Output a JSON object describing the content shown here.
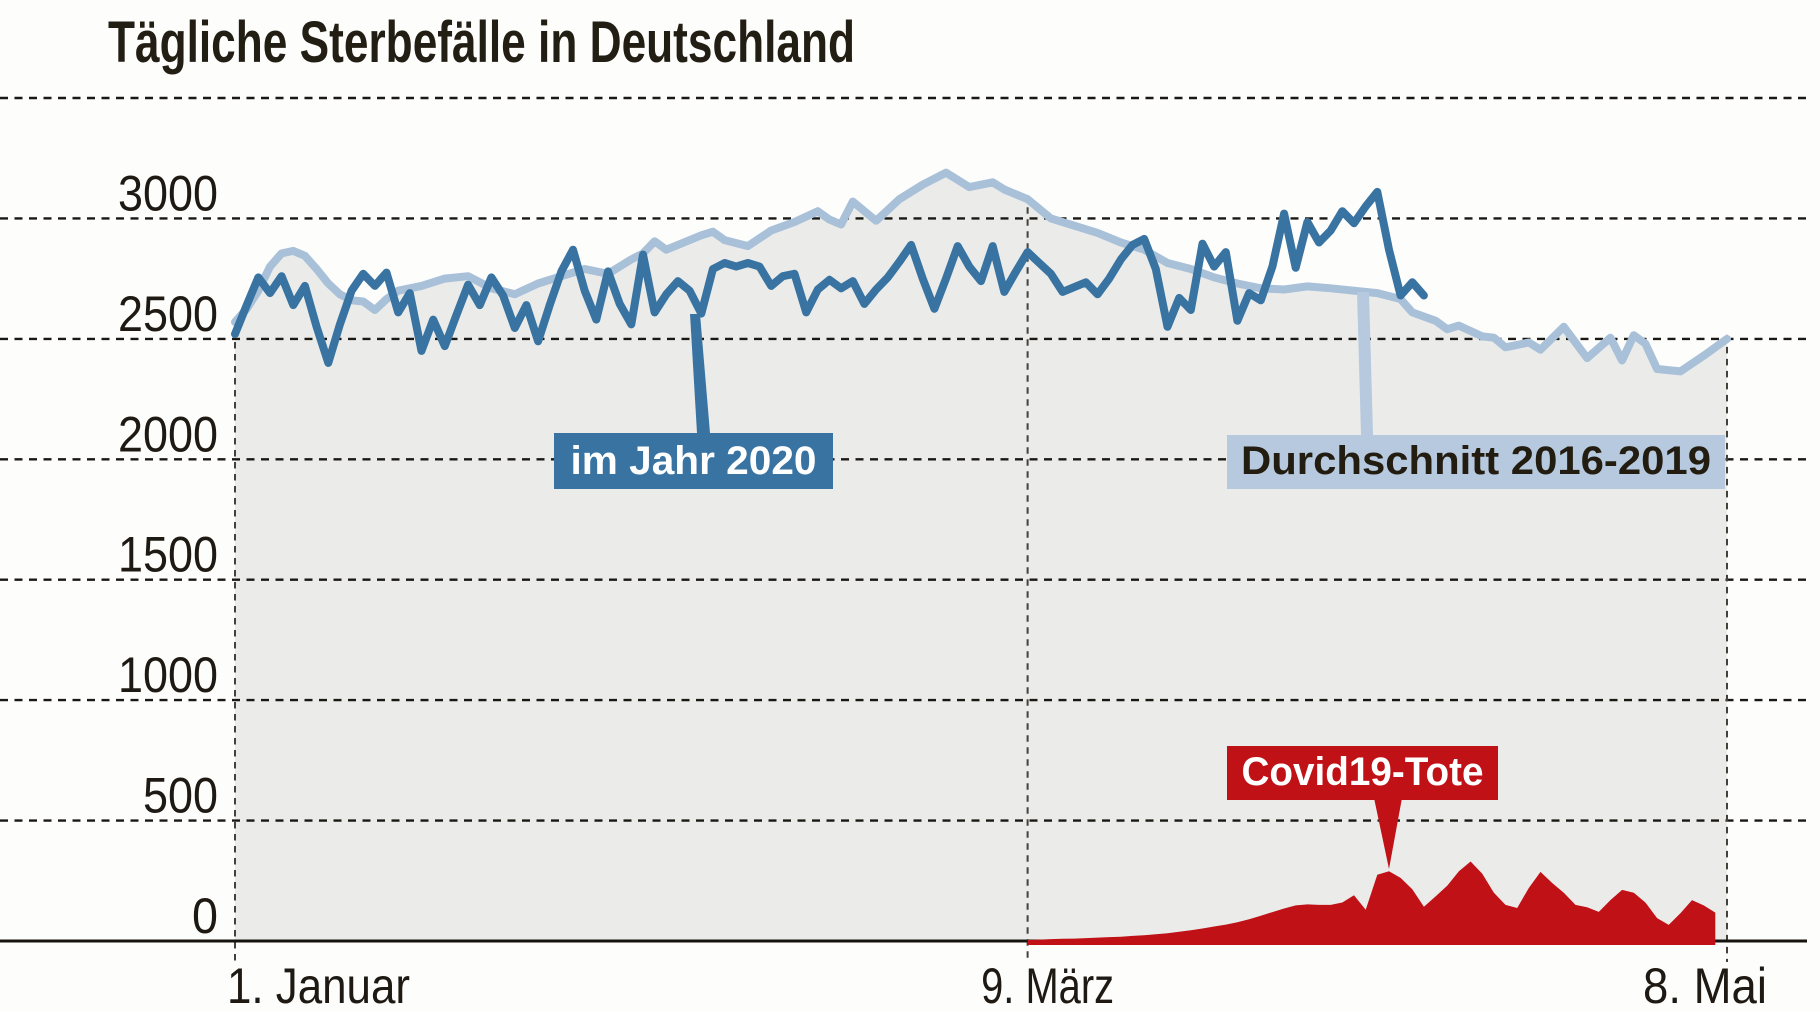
{
  "title": "Tägliche Sterbefälle in Deutschland",
  "annotations": {
    "jahr2020": "im Jahr 2020",
    "durchschnitt": "Durchschnitt 2016-2019",
    "covid": "Covid19-Tote"
  },
  "colors": {
    "background": "#fdfdfc",
    "plot_fill": "#ebece9",
    "grid": "#1b1813",
    "vgrid": "#44403a",
    "axis": "#16130e",
    "dark_blue": "#3973a1",
    "light_blue_line": "#a9c0d9",
    "light_blue_box": "#b6c9de",
    "red": "#c01117",
    "title_text": "#231e14",
    "tick_text": "#1e1a13",
    "annotation_dark_text": "#231c11",
    "annotation_light_text": "#ffffff"
  },
  "chart_data": {
    "type": "line+area",
    "title": "Tägliche Sterbefälle in Deutschland",
    "xlabel": "",
    "ylabel": "",
    "ylim": [
      0,
      3500
    ],
    "x_range_days": 128,
    "x_start_date": "1. Januar",
    "x_end_date": "8. Mai",
    "grid": "dashed",
    "y_gridline_values": [
      3500,
      3000,
      2500,
      2000,
      1500,
      1000,
      500
    ],
    "y_ticks": [
      {
        "value": 3000,
        "label": "3000",
        "len": 100
      },
      {
        "value": 2500,
        "label": "2500",
        "len": 100
      },
      {
        "value": 2000,
        "label": "2000",
        "len": 100
      },
      {
        "value": 1500,
        "label": "1500",
        "len": 100
      },
      {
        "value": 1000,
        "label": "1000",
        "len": 100
      },
      {
        "value": 500,
        "label": "500",
        "len": 75
      },
      {
        "value": 0,
        "label": "0",
        "len": 26
      }
    ],
    "x_ticks": [
      {
        "label": "1. Januar",
        "day": 0,
        "anchor": "start",
        "len": 183
      },
      {
        "label": "9. März",
        "day": 68,
        "anchor": "middle",
        "len": 133
      },
      {
        "label": "8. Mai",
        "day": 128,
        "anchor": "middle",
        "len": 124
      }
    ],
    "series": [
      {
        "name": "Durchschnitt 2016-2019",
        "kind": "line-with-gray-area",
        "points": [
          [
            0,
            2570
          ],
          [
            1,
            2625
          ],
          [
            2,
            2700
          ],
          [
            3,
            2800
          ],
          [
            4,
            2855
          ],
          [
            5,
            2865
          ],
          [
            6,
            2845
          ],
          [
            7,
            2790
          ],
          [
            8,
            2730
          ],
          [
            9,
            2685
          ],
          [
            10,
            2660
          ],
          [
            11,
            2655
          ],
          [
            12,
            2620
          ],
          [
            13,
            2665
          ],
          [
            14,
            2700
          ],
          [
            16,
            2720
          ],
          [
            18,
            2750
          ],
          [
            20,
            2760
          ],
          [
            22,
            2710
          ],
          [
            24,
            2685
          ],
          [
            26,
            2730
          ],
          [
            28,
            2760
          ],
          [
            30,
            2790
          ],
          [
            32,
            2770
          ],
          [
            34,
            2830
          ],
          [
            35,
            2855
          ],
          [
            36,
            2905
          ],
          [
            37,
            2870
          ],
          [
            38,
            2890
          ],
          [
            40,
            2930
          ],
          [
            41,
            2945
          ],
          [
            42,
            2910
          ],
          [
            44,
            2885
          ],
          [
            46,
            2950
          ],
          [
            48,
            2985
          ],
          [
            50,
            3030
          ],
          [
            51,
            2995
          ],
          [
            52,
            2975
          ],
          [
            53,
            3070
          ],
          [
            54,
            3030
          ],
          [
            55,
            2990
          ],
          [
            57,
            3080
          ],
          [
            59,
            3140
          ],
          [
            61,
            3190
          ],
          [
            62,
            3160
          ],
          [
            63,
            3130
          ],
          [
            65,
            3150
          ],
          [
            66,
            3120
          ],
          [
            68,
            3080
          ],
          [
            70,
            3000
          ],
          [
            72,
            2970
          ],
          [
            74,
            2940
          ],
          [
            76,
            2900
          ],
          [
            78,
            2870
          ],
          [
            80,
            2815
          ],
          [
            82,
            2790
          ],
          [
            84,
            2755
          ],
          [
            86,
            2730
          ],
          [
            88,
            2710
          ],
          [
            90,
            2705
          ],
          [
            92,
            2718
          ],
          [
            94,
            2710
          ],
          [
            96,
            2700
          ],
          [
            98,
            2690
          ],
          [
            100,
            2665
          ],
          [
            101,
            2610
          ],
          [
            103,
            2575
          ],
          [
            104,
            2540
          ],
          [
            105,
            2555
          ],
          [
            107,
            2510
          ],
          [
            108,
            2505
          ],
          [
            109,
            2465
          ],
          [
            111,
            2485
          ],
          [
            112,
            2455
          ],
          [
            114,
            2550
          ],
          [
            116,
            2420
          ],
          [
            118,
            2505
          ],
          [
            119,
            2410
          ],
          [
            120,
            2515
          ],
          [
            121,
            2480
          ],
          [
            122,
            2375
          ],
          [
            124,
            2365
          ],
          [
            126,
            2430
          ],
          [
            128,
            2500
          ]
        ]
      },
      {
        "name": "im Jahr 2020",
        "kind": "line",
        "points": [
          [
            0,
            2520
          ],
          [
            1,
            2640
          ],
          [
            2,
            2755
          ],
          [
            3,
            2690
          ],
          [
            4,
            2760
          ],
          [
            5,
            2640
          ],
          [
            6,
            2720
          ],
          [
            7,
            2550
          ],
          [
            8,
            2400
          ],
          [
            9,
            2560
          ],
          [
            10,
            2700
          ],
          [
            11,
            2770
          ],
          [
            12,
            2720
          ],
          [
            13,
            2775
          ],
          [
            14,
            2610
          ],
          [
            15,
            2690
          ],
          [
            16,
            2450
          ],
          [
            17,
            2580
          ],
          [
            18,
            2470
          ],
          [
            19,
            2600
          ],
          [
            20,
            2725
          ],
          [
            21,
            2640
          ],
          [
            22,
            2755
          ],
          [
            23,
            2680
          ],
          [
            24,
            2545
          ],
          [
            25,
            2640
          ],
          [
            26,
            2490
          ],
          [
            27,
            2640
          ],
          [
            28,
            2780
          ],
          [
            29,
            2870
          ],
          [
            30,
            2700
          ],
          [
            31,
            2580
          ],
          [
            32,
            2780
          ],
          [
            33,
            2645
          ],
          [
            34,
            2560
          ],
          [
            35,
            2850
          ],
          [
            36,
            2610
          ],
          [
            37,
            2685
          ],
          [
            38,
            2740
          ],
          [
            39,
            2700
          ],
          [
            40,
            2605
          ],
          [
            41,
            2790
          ],
          [
            42,
            2815
          ],
          [
            43,
            2800
          ],
          [
            44,
            2815
          ],
          [
            45,
            2800
          ],
          [
            46,
            2720
          ],
          [
            47,
            2760
          ],
          [
            48,
            2770
          ],
          [
            49,
            2610
          ],
          [
            50,
            2705
          ],
          [
            51,
            2745
          ],
          [
            52,
            2710
          ],
          [
            53,
            2740
          ],
          [
            54,
            2645
          ],
          [
            55,
            2705
          ],
          [
            56,
            2755
          ],
          [
            57,
            2820
          ],
          [
            58,
            2890
          ],
          [
            59,
            2750
          ],
          [
            60,
            2625
          ],
          [
            61,
            2750
          ],
          [
            62,
            2885
          ],
          [
            63,
            2800
          ],
          [
            64,
            2740
          ],
          [
            65,
            2885
          ],
          [
            66,
            2695
          ],
          [
            67,
            2780
          ],
          [
            68,
            2860
          ],
          [
            69,
            2815
          ],
          [
            70,
            2770
          ],
          [
            71,
            2695
          ],
          [
            72,
            2715
          ],
          [
            73,
            2735
          ],
          [
            74,
            2685
          ],
          [
            75,
            2750
          ],
          [
            76,
            2830
          ],
          [
            77,
            2890
          ],
          [
            78,
            2915
          ],
          [
            79,
            2790
          ],
          [
            80,
            2550
          ],
          [
            81,
            2670
          ],
          [
            82,
            2620
          ],
          [
            83,
            2895
          ],
          [
            84,
            2800
          ],
          [
            85,
            2860
          ],
          [
            86,
            2575
          ],
          [
            87,
            2690
          ],
          [
            88,
            2660
          ],
          [
            89,
            2800
          ],
          [
            90,
            3020
          ],
          [
            91,
            2795
          ],
          [
            92,
            2985
          ],
          [
            93,
            2900
          ],
          [
            94,
            2950
          ],
          [
            95,
            3030
          ],
          [
            96,
            2980
          ],
          [
            97,
            3050
          ],
          [
            98,
            3110
          ],
          [
            99,
            2870
          ],
          [
            100,
            2680
          ],
          [
            101,
            2735
          ],
          [
            102,
            2680
          ]
        ]
      },
      {
        "name": "Covid19-Tote",
        "kind": "red-area",
        "points": [
          [
            68,
            4
          ],
          [
            69,
            6
          ],
          [
            70,
            8
          ],
          [
            71,
            9
          ],
          [
            72,
            10
          ],
          [
            73,
            12
          ],
          [
            74,
            14
          ],
          [
            75,
            16
          ],
          [
            76,
            18
          ],
          [
            77,
            21
          ],
          [
            78,
            24
          ],
          [
            79,
            28
          ],
          [
            80,
            32
          ],
          [
            81,
            38
          ],
          [
            82,
            45
          ],
          [
            83,
            52
          ],
          [
            84,
            60
          ],
          [
            85,
            68
          ],
          [
            86,
            78
          ],
          [
            87,
            90
          ],
          [
            88,
            105
          ],
          [
            89,
            120
          ],
          [
            90,
            135
          ],
          [
            91,
            148
          ],
          [
            92,
            152
          ],
          [
            93,
            150
          ],
          [
            94,
            150
          ],
          [
            95,
            160
          ],
          [
            96,
            190
          ],
          [
            97,
            130
          ],
          [
            98,
            275
          ],
          [
            99,
            290
          ],
          [
            100,
            262
          ],
          [
            101,
            215
          ],
          [
            102,
            142
          ],
          [
            103,
            185
          ],
          [
            104,
            230
          ],
          [
            105,
            290
          ],
          [
            106,
            330
          ],
          [
            107,
            280
          ],
          [
            108,
            200
          ],
          [
            109,
            150
          ],
          [
            110,
            137
          ],
          [
            111,
            220
          ],
          [
            112,
            287
          ],
          [
            113,
            241
          ],
          [
            114,
            200
          ],
          [
            115,
            150
          ],
          [
            116,
            140
          ],
          [
            117,
            121
          ],
          [
            118,
            170
          ],
          [
            119,
            212
          ],
          [
            120,
            200
          ],
          [
            121,
            160
          ],
          [
            122,
            95
          ],
          [
            123,
            67
          ],
          [
            124,
            115
          ],
          [
            125,
            170
          ],
          [
            126,
            148
          ],
          [
            127,
            118
          ]
        ]
      }
    ],
    "legend_position": "annotated-boxes-inside-plot"
  }
}
